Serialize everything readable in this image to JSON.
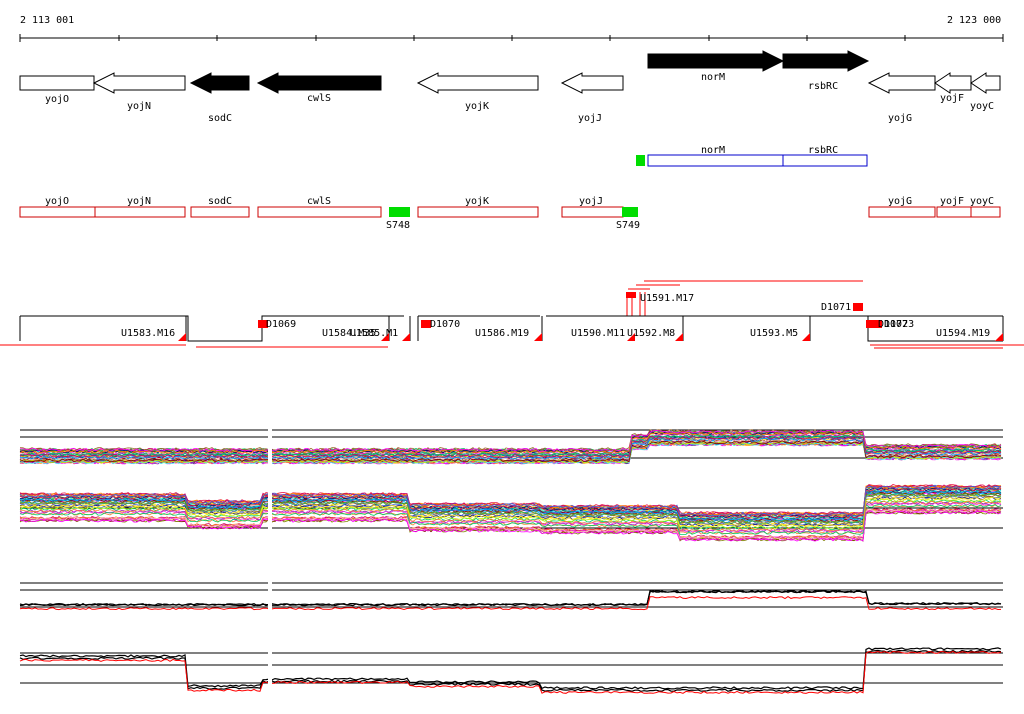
{
  "coordinates": {
    "start": "2 113 001",
    "end": "2 123 000"
  },
  "genes": [
    {
      "name": "yojO",
      "dir": "right",
      "strand": "white"
    },
    {
      "name": "yojN",
      "dir": "left",
      "strand": "white"
    },
    {
      "name": "sodC",
      "dir": "left",
      "strand": "black"
    },
    {
      "name": "cwlS",
      "dir": "left",
      "strand": "black"
    },
    {
      "name": "yojK",
      "dir": "left",
      "strand": "white"
    },
    {
      "name": "yojJ",
      "dir": "left",
      "strand": "white"
    },
    {
      "name": "norM",
      "dir": "right",
      "strand": "black"
    },
    {
      "name": "rsbRC",
      "dir": "right",
      "strand": "black"
    },
    {
      "name": "yojG",
      "dir": "left",
      "strand": "white"
    },
    {
      "name": "yojF",
      "dir": "left",
      "strand": "white"
    },
    {
      "name": "yoyC",
      "dir": "left",
      "strand": "white"
    }
  ],
  "operon_blue": [
    "norM",
    "rsbRC"
  ],
  "red_genes": [
    "yojO",
    "yojN",
    "sodC",
    "cwlS",
    "yojK",
    "yojJ",
    "yojG",
    "yojF",
    "yoyC"
  ],
  "green_markers": [
    "S748",
    "S749"
  ],
  "upshift_labels": [
    "U1583.M16",
    "U1584.M35",
    "U1585.M1",
    "U1586.M19",
    "U1590.M11",
    "U1592.M8",
    "U1593.M5",
    "U1594.M19"
  ],
  "downshift_labels": [
    "D1069",
    "D1070",
    "D1071",
    "D1072",
    "D1073"
  ],
  "cluster_label": "U1591.M17",
  "colors": {
    "gene_black": "#000000",
    "operon": "#0000cc",
    "segment": "#cc0000",
    "marker_green": "#00dd00",
    "red": "#ff0000"
  }
}
